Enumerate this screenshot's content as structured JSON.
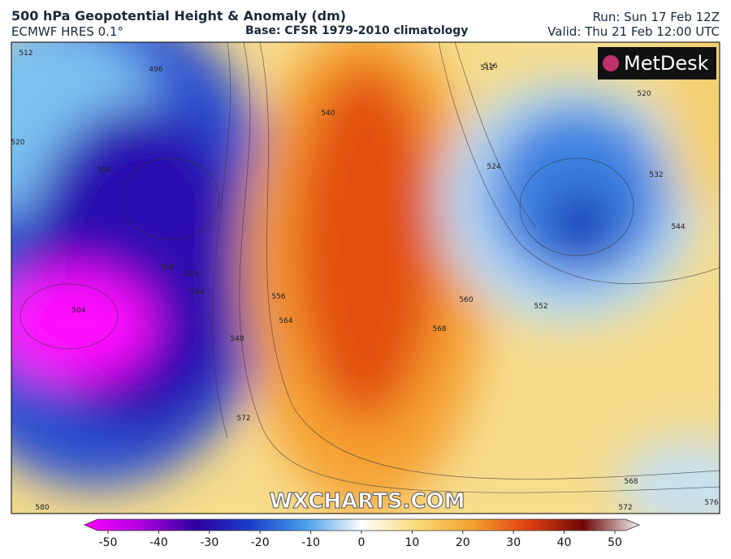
{
  "header": {
    "title": "500 hPa Geopotential Height & Anomaly (dm)",
    "model": "ECMWF HRES 0.1°",
    "base": "Base: CFSR 1979-2010 climatology",
    "run": "Run: Sun 17 Feb 12Z",
    "valid": "Valid: Thu 21 Feb 12:00 UTC"
  },
  "map": {
    "logo": "MetDesk",
    "watermark": "WXCHARTS.COM",
    "contour_labels": [
      "512",
      "496",
      "520",
      "504",
      "508",
      "516",
      "524",
      "548",
      "556",
      "564",
      "572",
      "580",
      "540",
      "560",
      "568",
      "552",
      "532",
      "544",
      "520",
      "516",
      "512",
      "524",
      "504",
      "568",
      "572",
      "576"
    ]
  },
  "colorbar": {
    "ticks": [
      -50,
      -40,
      -30,
      -20,
      -10,
      0,
      10,
      20,
      30,
      40,
      50
    ]
  }
}
